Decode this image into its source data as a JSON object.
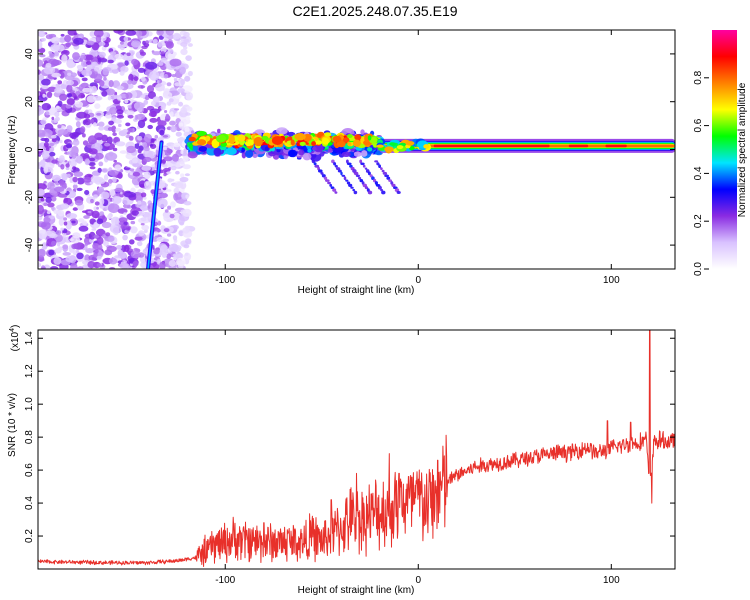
{
  "title": "C2E1.2025.248.07.35.E19",
  "chart_data": [
    {
      "type": "heatmap",
      "name": "spectrogram",
      "xlabel": "Height of straight line (km)",
      "ylabel": "Frequency (Hz)",
      "xlim": [
        -197,
        133
      ],
      "ylim": [
        -50,
        50
      ],
      "x_ticks": [
        -100,
        0,
        100
      ],
      "x_tick_labels": [
        "-100",
        "0",
        "100"
      ],
      "y_ticks": [
        -40,
        -20,
        0,
        20,
        40
      ],
      "y_tick_labels": [
        "-40",
        "-20",
        "0",
        "20",
        "40"
      ],
      "colorbar": {
        "label": "Normalized spectral amplitude",
        "range": [
          0,
          1
        ],
        "ticks": [
          0.0,
          0.2,
          0.4,
          0.6,
          0.8
        ],
        "tick_labels": [
          "0.0",
          "0.2",
          "0.4",
          "0.6",
          "0.8"
        ],
        "colors": [
          "#ffffff",
          "#d9c2ff",
          "#8a2be2",
          "#0000ff",
          "#00e5ff",
          "#00ff00",
          "#ffff00",
          "#ff8000",
          "#ff0000",
          "#ff00a0"
        ]
      },
      "features": [
        {
          "kind": "noise-region",
          "x_range": [
            -197,
            -118
          ],
          "freq_range": [
            -50,
            50
          ],
          "amplitude": 0.2
        },
        {
          "kind": "streak",
          "from": [
            -140,
            -50
          ],
          "to": [
            -133,
            3
          ],
          "amplitude": 0.3
        },
        {
          "kind": "scatter-band",
          "x_range": [
            -118,
            -20
          ],
          "freq_range": [
            -10,
            10
          ],
          "amplitude": 0.45
        },
        {
          "kind": "chirps",
          "x_range": [
            -55,
            -20
          ],
          "freq_range": [
            -20,
            -5
          ],
          "amplitude": 0.2
        },
        {
          "kind": "tone",
          "x_range": [
            -20,
            133
          ],
          "frequency": 1.5,
          "amplitude": 0.9
        }
      ]
    },
    {
      "type": "line",
      "name": "snr",
      "xlabel": "Height of straight line (km)",
      "ylabel": "SNR (10 * v/v)",
      "y_scale_label": "(x10",
      "y_scale_exponent": "4",
      "xlim": [
        -197,
        133
      ],
      "ylim": [
        0,
        14500
      ],
      "x_ticks": [
        -100,
        0,
        100
      ],
      "x_tick_labels": [
        "-100",
        "0",
        "100"
      ],
      "y_ticks": [
        2000,
        4000,
        6000,
        8000,
        10000,
        12000,
        14000
      ],
      "y_tick_labels": [
        "0.2",
        "0.4",
        "0.6",
        "0.8",
        "1.0",
        "1.2",
        "1.4"
      ],
      "color": "#e8302a",
      "series": [
        {
          "name": "SNR",
          "x": [
            -197,
            -180,
            -160,
            -140,
            -125,
            -115,
            -105,
            -95,
            -85,
            -75,
            -65,
            -60,
            -55,
            -50,
            -45,
            -40,
            -35,
            -30,
            -25,
            -20,
            -15,
            -10,
            -5,
            0,
            5,
            10,
            15,
            20,
            30,
            40,
            50,
            60,
            70,
            80,
            88,
            92,
            96,
            100,
            105,
            110,
            115,
            118,
            120,
            122,
            125,
            130,
            133
          ],
          "y": [
            450,
            420,
            380,
            380,
            500,
            700,
            1500,
            1800,
            1700,
            1600,
            1700,
            1600,
            2000,
            1700,
            2100,
            2500,
            3000,
            3100,
            3200,
            3500,
            3600,
            4200,
            4000,
            4200,
            3800,
            4600,
            5300,
            5700,
            6200,
            6400,
            6600,
            6800,
            7000,
            7100,
            7400,
            7000,
            7200,
            7300,
            7500,
            7600,
            7700,
            7900,
            5000,
            7700,
            7800,
            7700,
            7800
          ]
        }
      ],
      "spikes": [
        {
          "x": -80,
          "y": 2800
        },
        {
          "x": -45,
          "y": 4200
        },
        {
          "x": -32,
          "y": 5800
        },
        {
          "x": -15,
          "y": 7000
        },
        {
          "x": -10,
          "y": 5800
        },
        {
          "x": 10,
          "y": 6600
        },
        {
          "x": 98,
          "y": 9000
        },
        {
          "x": 110,
          "y": 8900
        },
        {
          "x": 120,
          "y": 14500
        },
        {
          "x": 121,
          "y": 4000
        }
      ]
    }
  ]
}
